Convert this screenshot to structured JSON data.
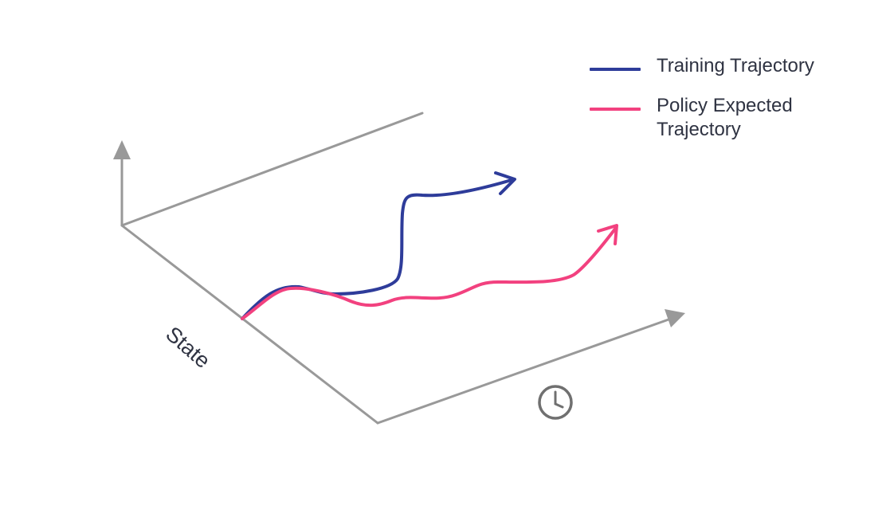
{
  "legend": {
    "items": [
      {
        "label": "Training Trajectory",
        "color": "#2e3c9a"
      },
      {
        "label": "Policy Expected Trajectory",
        "color": "#f2417f"
      }
    ]
  },
  "axes": {
    "state_label": "State",
    "time_icon": "clock-icon",
    "axis_color": "#999999"
  }
}
